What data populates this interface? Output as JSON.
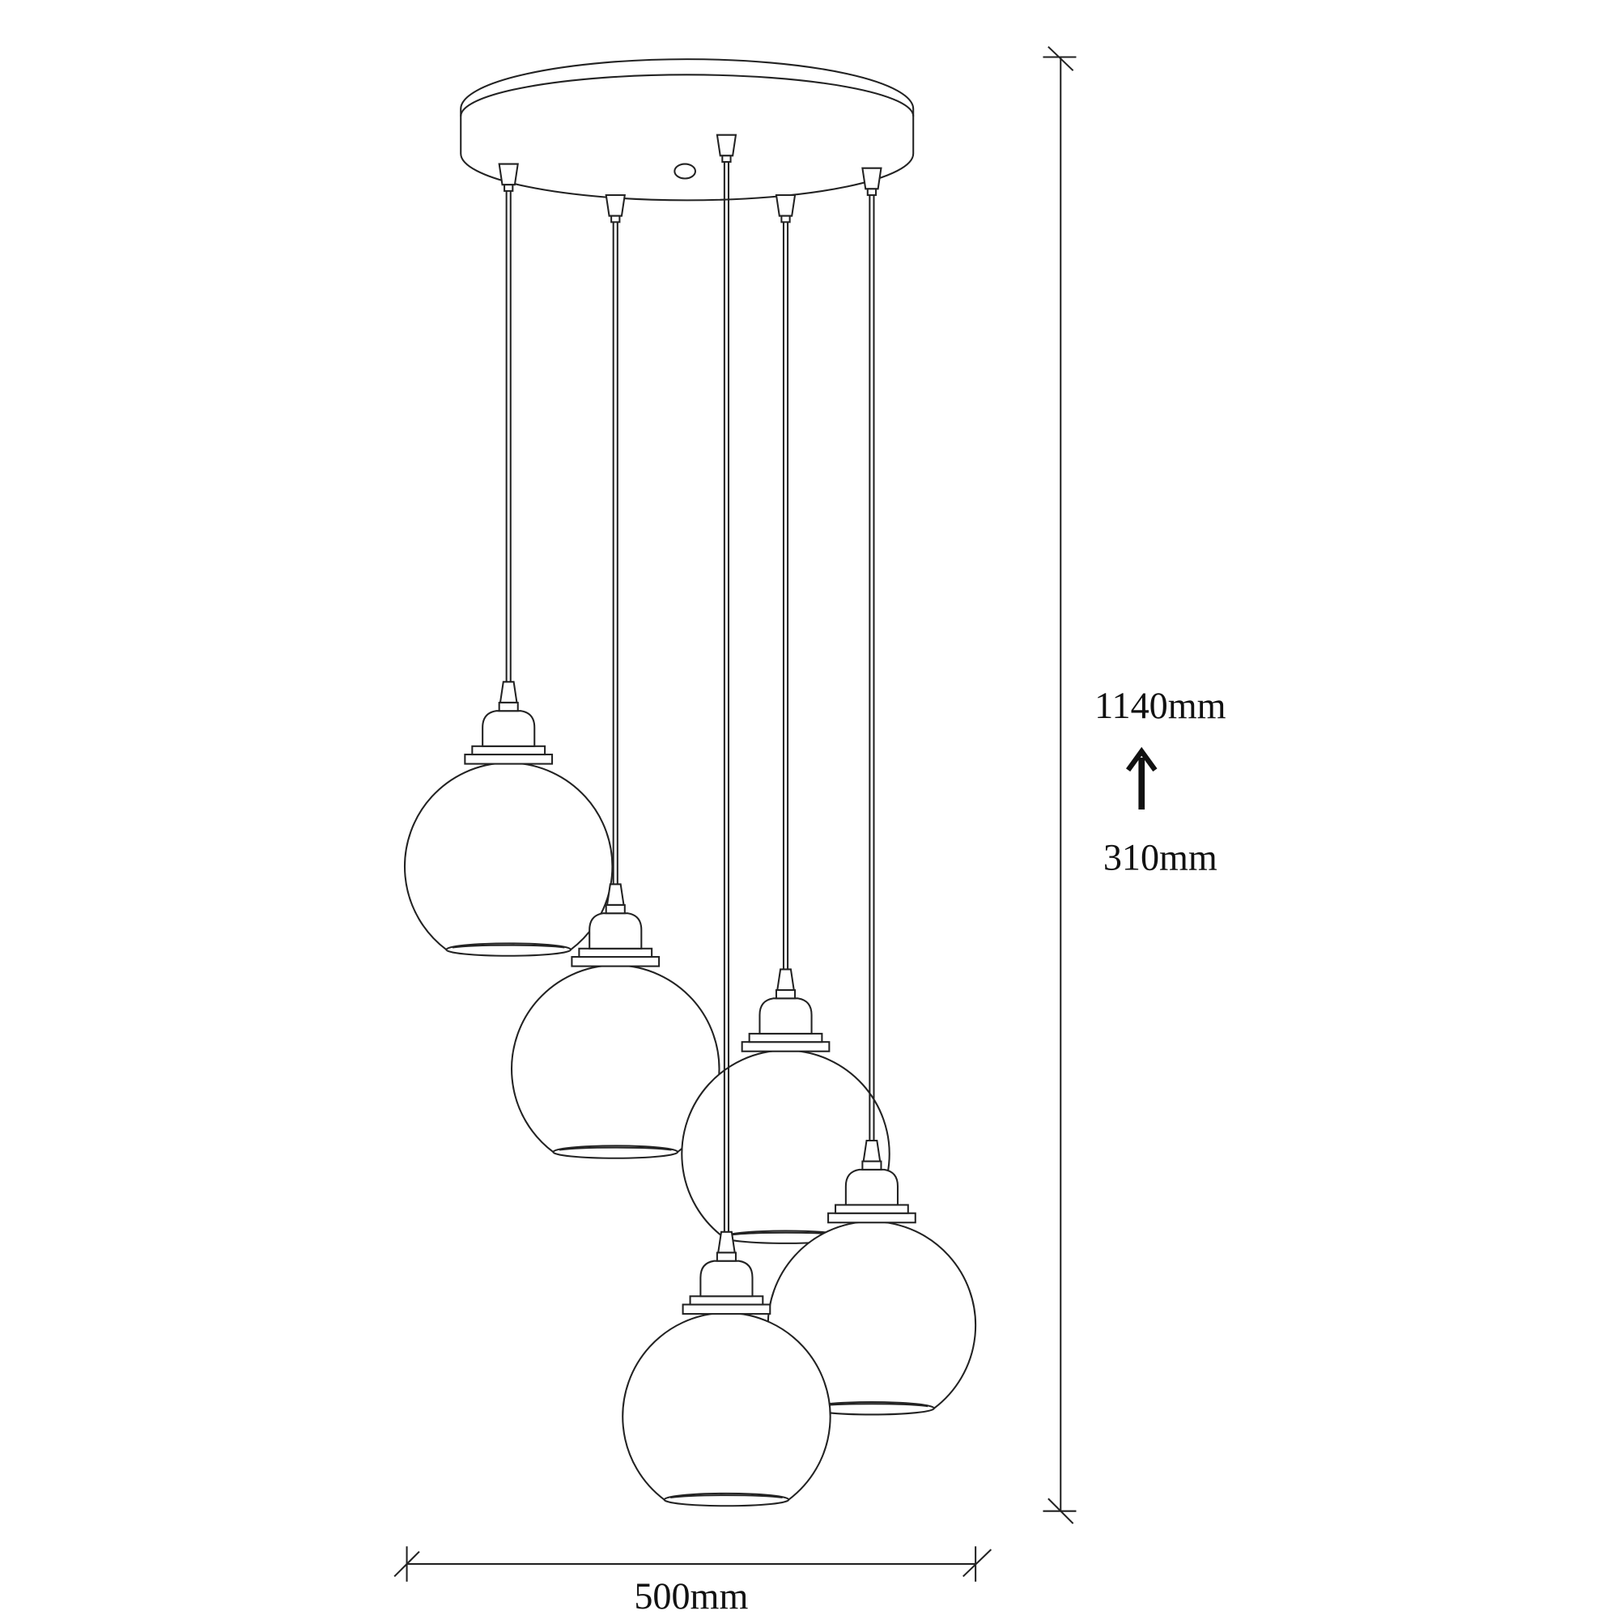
{
  "dimensions": {
    "height_max": "1140mm",
    "height_min": "310mm",
    "width": "500mm"
  },
  "pendant_count": 5,
  "line_color": "#222222",
  "arrow_icon": "arrow-up-icon"
}
